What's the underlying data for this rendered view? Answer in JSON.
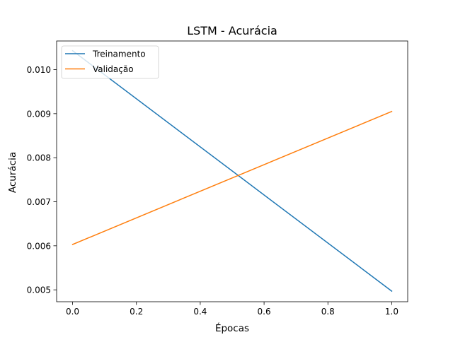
{
  "chart_data": {
    "type": "line",
    "title": "LSTM - Acurácia",
    "xlabel": "Épocas",
    "ylabel": "Acurácia",
    "xlim": [
      -0.05,
      1.05
    ],
    "ylim": [
      0.00473,
      0.01065
    ],
    "xticks": [
      0.0,
      0.2,
      0.4,
      0.6,
      0.8,
      1.0
    ],
    "xtick_labels": [
      "0.0",
      "0.2",
      "0.4",
      "0.6",
      "0.8",
      "1.0"
    ],
    "yticks": [
      0.005,
      0.006,
      0.007,
      0.008,
      0.009,
      0.01
    ],
    "ytick_labels": [
      "0.005",
      "0.006",
      "0.007",
      "0.008",
      "0.009",
      "0.010"
    ],
    "grid": false,
    "legend_position": "upper left",
    "series": [
      {
        "name": "Treinamento",
        "color": "#1f77b4",
        "x": [
          0,
          1
        ],
        "y": [
          0.01043,
          0.00497
        ]
      },
      {
        "name": "Validação",
        "color": "#ff7f0e",
        "x": [
          0,
          1
        ],
        "y": [
          0.00603,
          0.00905
        ]
      }
    ]
  }
}
